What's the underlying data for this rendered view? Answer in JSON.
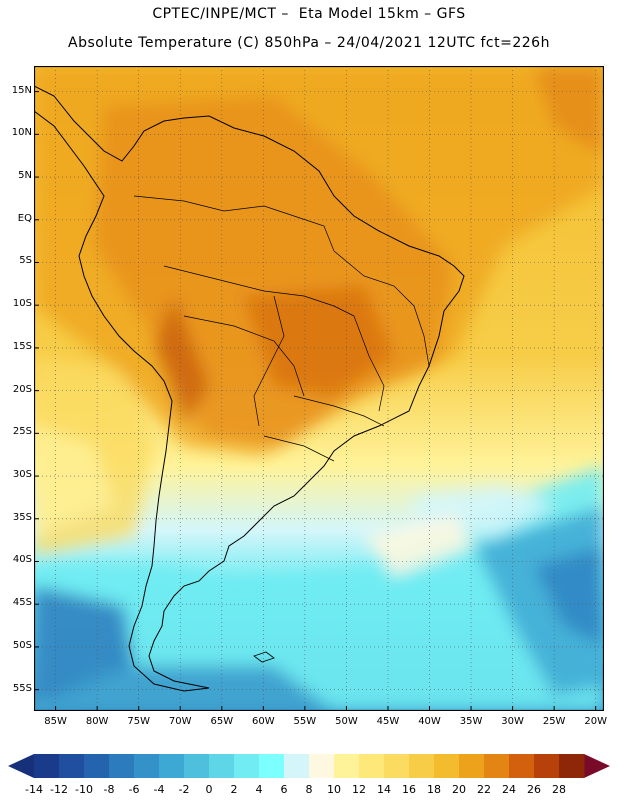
{
  "header": {
    "line1": "CPTEC/INPE/MCT –  Eta Model 15km – GFS",
    "line2": "Absolute Temperature (C) 850hPa – 24/04/2021 12UTC fct=226h"
  },
  "map": {
    "lat_labels": [
      "15N",
      "10N",
      "5N",
      "EQ",
      "5S",
      "10S",
      "15S",
      "20S",
      "25S",
      "30S",
      "35S",
      "40S",
      "45S",
      "50S",
      "55S"
    ],
    "lon_labels": [
      "85W",
      "80W",
      "75W",
      "70W",
      "65W",
      "60W",
      "55W",
      "50W",
      "45W",
      "40W",
      "35W",
      "30W",
      "25W",
      "20W"
    ],
    "lat_values": [
      15,
      10,
      5,
      0,
      -5,
      -10,
      -15,
      -20,
      -25,
      -30,
      -35,
      -40,
      -45,
      -50,
      -55
    ],
    "lon_values": [
      -85,
      -80,
      -75,
      -70,
      -65,
      -60,
      -55,
      -50,
      -45,
      -40,
      -35,
      -30,
      -25,
      -20
    ],
    "grid": true,
    "frame_color": "#000000",
    "coastline_color": "#000000"
  },
  "legend": {
    "labels": [
      "-14",
      "-12",
      "-10",
      "-8",
      "-6",
      "-4",
      "-2",
      "0",
      "2",
      "4",
      "6",
      "8",
      "10",
      "12",
      "14",
      "16",
      "18",
      "20",
      "22",
      "24",
      "26",
      "28"
    ],
    "colors": [
      "#1a3a8a",
      "#1f4f9e",
      "#2464ae",
      "#2b7bbd",
      "#3492c8",
      "#3ea8d4",
      "#4ec0dd",
      "#5ed6e8",
      "#70ecf2",
      "#7effff",
      "#d4f6fa",
      "#fff8e0",
      "#fff39a",
      "#ffe87a",
      "#fbdb60",
      "#f7cd48",
      "#f3bc2e",
      "#eda21c",
      "#e38512",
      "#d2600c",
      "#b8400a",
      "#8e2608"
    ],
    "low_arrow_color": "#16307a",
    "high_arrow_color": "#7a0a2a"
  }
}
